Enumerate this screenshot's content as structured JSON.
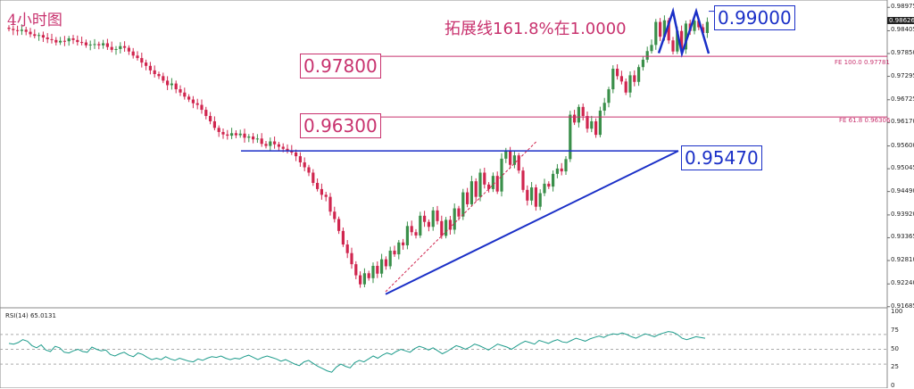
{
  "header": {
    "timeframe": "4小时图",
    "headline": "拓展线161.8%在1.0000"
  },
  "levels": {
    "top": "0.99000",
    "fe100": "0.97800",
    "fe618": "0.96300",
    "neck": "0.95470"
  },
  "fib_labels": {
    "fe100": "FE 100.0  0.97781",
    "fe618": "FE 61.8  0.96306"
  },
  "rsi_label": "RSI(14) 65.0131",
  "colors": {
    "bull": "#3a8f4a",
    "bear": "#d0264f",
    "red": "#c8326e",
    "blue": "#1a2fc7",
    "rsi": "#1f9c8c"
  },
  "chart_data": {
    "type": "candlestick",
    "ylim": [
      0.9168,
      0.9898
    ],
    "yticks": [
      "0.98975",
      "0.98405",
      "0.97850",
      "0.97295",
      "0.96725",
      "0.96170",
      "0.95600",
      "0.95045",
      "0.94490",
      "0.93920",
      "0.93365",
      "0.92810",
      "0.92240",
      "0.91685"
    ],
    "current_price": "0.98626",
    "horizontal_lines": [
      0.97781,
      0.96306
    ],
    "neckline": 0.9548,
    "trendline": [
      [
        0.9199,
        0.9548
      ]
    ],
    "closes": [
      0.9845,
      0.9842,
      0.984,
      0.9843,
      0.9838,
      0.9832,
      0.9828,
      0.983,
      0.9824,
      0.982,
      0.9818,
      0.9812,
      0.9816,
      0.9815,
      0.9822,
      0.9818,
      0.9813,
      0.9812,
      0.9805,
      0.9807,
      0.9808,
      0.9805,
      0.981,
      0.9801,
      0.9794,
      0.9796,
      0.9803,
      0.9799,
      0.979,
      0.978,
      0.9774,
      0.9763,
      0.9755,
      0.9744,
      0.9735,
      0.973,
      0.9719,
      0.9708,
      0.9712,
      0.9698,
      0.969,
      0.968,
      0.9673,
      0.9664,
      0.966,
      0.9648,
      0.9633,
      0.962,
      0.9604,
      0.9594,
      0.9588,
      0.9585,
      0.9591,
      0.9586,
      0.959,
      0.958,
      0.9583,
      0.9576,
      0.9578,
      0.9565,
      0.956,
      0.9571,
      0.9564,
      0.9558,
      0.9553,
      0.9549,
      0.9544,
      0.9535,
      0.952,
      0.9508,
      0.9495,
      0.947,
      0.9455,
      0.9441,
      0.9436,
      0.94,
      0.9382,
      0.9353,
      0.932,
      0.9299,
      0.9272,
      0.9245,
      0.9223,
      0.925,
      0.9238,
      0.9268,
      0.9249,
      0.9284,
      0.9267,
      0.9305,
      0.9296,
      0.9325,
      0.9318,
      0.9365,
      0.935,
      0.9342,
      0.939,
      0.9375,
      0.9363,
      0.9403,
      0.9377,
      0.9341,
      0.938,
      0.9356,
      0.9408,
      0.9388,
      0.9447,
      0.9418,
      0.9474,
      0.9436,
      0.9495,
      0.9466,
      0.9455,
      0.9487,
      0.9449,
      0.9529,
      0.9548,
      0.9514,
      0.9537,
      0.95,
      0.9453,
      0.9427,
      0.9459,
      0.9412,
      0.9445,
      0.9468,
      0.9461,
      0.9492,
      0.9505,
      0.9498,
      0.9528,
      0.9636,
      0.9617,
      0.9655,
      0.9633,
      0.9602,
      0.962,
      0.9587,
      0.9646,
      0.9665,
      0.9698,
      0.9748,
      0.973,
      0.9717,
      0.969,
      0.9732,
      0.9716,
      0.9752,
      0.977,
      0.9791,
      0.9806,
      0.9862,
      0.9826,
      0.9866,
      0.9817,
      0.979,
      0.984,
      0.9795,
      0.9858,
      0.984,
      0.9865,
      0.9849,
      0.9835,
      0.9862
    ]
  },
  "rsi_data": {
    "ylim": [
      0,
      100
    ],
    "yticks": [
      "100",
      "75",
      "50",
      "25",
      "0"
    ],
    "levels": [
      70,
      50,
      30
    ],
    "values": [
      58,
      57,
      59,
      63,
      61,
      55,
      52,
      56,
      49,
      47,
      54,
      52,
      46,
      45,
      48,
      50,
      47,
      46,
      53,
      50,
      48,
      49,
      43,
      41,
      44,
      46,
      42,
      40,
      45,
      43,
      39,
      36,
      38,
      36,
      40,
      37,
      35,
      38,
      36,
      34,
      33,
      37,
      35,
      38,
      40,
      39,
      41,
      38,
      36,
      38,
      37,
      40,
      42,
      39,
      36,
      39,
      41,
      39,
      37,
      34,
      36,
      33,
      30,
      28,
      33,
      35,
      31,
      27,
      24,
      21,
      19,
      26,
      30,
      27,
      25,
      32,
      35,
      33,
      37,
      41,
      38,
      42,
      45,
      43,
      47,
      50,
      48,
      46,
      51,
      54,
      52,
      49,
      52,
      48,
      44,
      47,
      51,
      55,
      53,
      50,
      53,
      57,
      55,
      52,
      49,
      53,
      57,
      55,
      53,
      50,
      54,
      58,
      61,
      59,
      57,
      62,
      60,
      58,
      61,
      63,
      60,
      59,
      62,
      65,
      63,
      61,
      64,
      66,
      68,
      66,
      69,
      71,
      70,
      72,
      70,
      67,
      65,
      68,
      71,
      69,
      67,
      70,
      72,
      74,
      73,
      70,
      65,
      63,
      65,
      67,
      66,
      65
    ]
  }
}
